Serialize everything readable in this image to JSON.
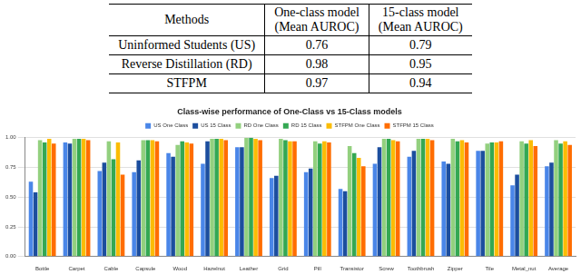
{
  "table": {
    "header": [
      [
        "Methods"
      ],
      [
        "One-class model",
        "(Mean AUROC)"
      ],
      [
        "15-class model",
        "(Mean AUROC)"
      ]
    ],
    "rows": [
      [
        "Uninformed Students (US)",
        0.76,
        0.79
      ],
      [
        "Reverse Distillation (RD)",
        0.98,
        0.95
      ],
      [
        "STFPM",
        0.97,
        0.94
      ]
    ]
  },
  "chart_data": {
    "type": "bar",
    "title": "Class-wise performance of One-Class vs 15-Class models",
    "categories": [
      "Bottle",
      "Carpet",
      "Cable",
      "Capsule",
      "Wood",
      "Hazelnut",
      "Leather",
      "Grid",
      "Pill",
      "Transistor",
      "Screw",
      "Toothbrush",
      "Zipper",
      "Tile",
      "Metal_nut",
      "Average"
    ],
    "series": [
      {
        "name": "US One Class",
        "color": "#4a86e8",
        "values": [
          0.63,
          0.96,
          0.72,
          0.71,
          0.87,
          0.78,
          0.92,
          0.66,
          0.71,
          0.57,
          0.78,
          0.84,
          0.8,
          0.89,
          0.6,
          0.76
        ]
      },
      {
        "name": "US 15 Class",
        "color": "#1c4e9e",
        "values": [
          0.54,
          0.95,
          0.79,
          0.81,
          0.84,
          0.97,
          0.92,
          0.68,
          0.74,
          0.55,
          0.92,
          0.89,
          0.78,
          0.89,
          0.69,
          0.79
        ]
      },
      {
        "name": "RD One Class",
        "color": "#93d07f",
        "values": [
          0.98,
          0.99,
          0.97,
          0.98,
          0.94,
          0.99,
          1.0,
          0.99,
          0.97,
          0.93,
          0.99,
          0.99,
          0.99,
          0.95,
          0.97,
          0.98
        ]
      },
      {
        "name": "RD 15 Class",
        "color": "#34a853",
        "values": [
          0.96,
          0.99,
          0.82,
          0.98,
          0.97,
          0.99,
          1.0,
          0.98,
          0.95,
          0.87,
          0.99,
          0.99,
          0.97,
          0.96,
          0.95,
          0.95
        ]
      },
      {
        "name": "STFPM One Class",
        "color": "#fbbc04",
        "values": [
          0.99,
          0.99,
          0.96,
          0.98,
          0.96,
          0.99,
          0.99,
          0.97,
          0.97,
          0.83,
          0.98,
          0.99,
          0.98,
          0.96,
          0.98,
          0.97
        ]
      },
      {
        "name": "STFPM 15 Class",
        "color": "#ff6d01",
        "values": [
          0.95,
          0.98,
          0.69,
          0.97,
          0.95,
          0.98,
          0.98,
          0.97,
          0.96,
          0.76,
          0.97,
          0.98,
          0.96,
          0.97,
          0.93,
          0.94
        ]
      }
    ],
    "ylim": [
      0,
      1
    ],
    "yticks": [
      {
        "value": 0,
        "label": "0.00"
      },
      {
        "value": 0.25,
        "label": "0.25"
      },
      {
        "value": 0.5,
        "label": "0.50"
      },
      {
        "value": 0.75,
        "label": "0.75"
      },
      {
        "value": 1,
        "label": "1.00"
      }
    ],
    "grid": true,
    "legend": "top"
  }
}
